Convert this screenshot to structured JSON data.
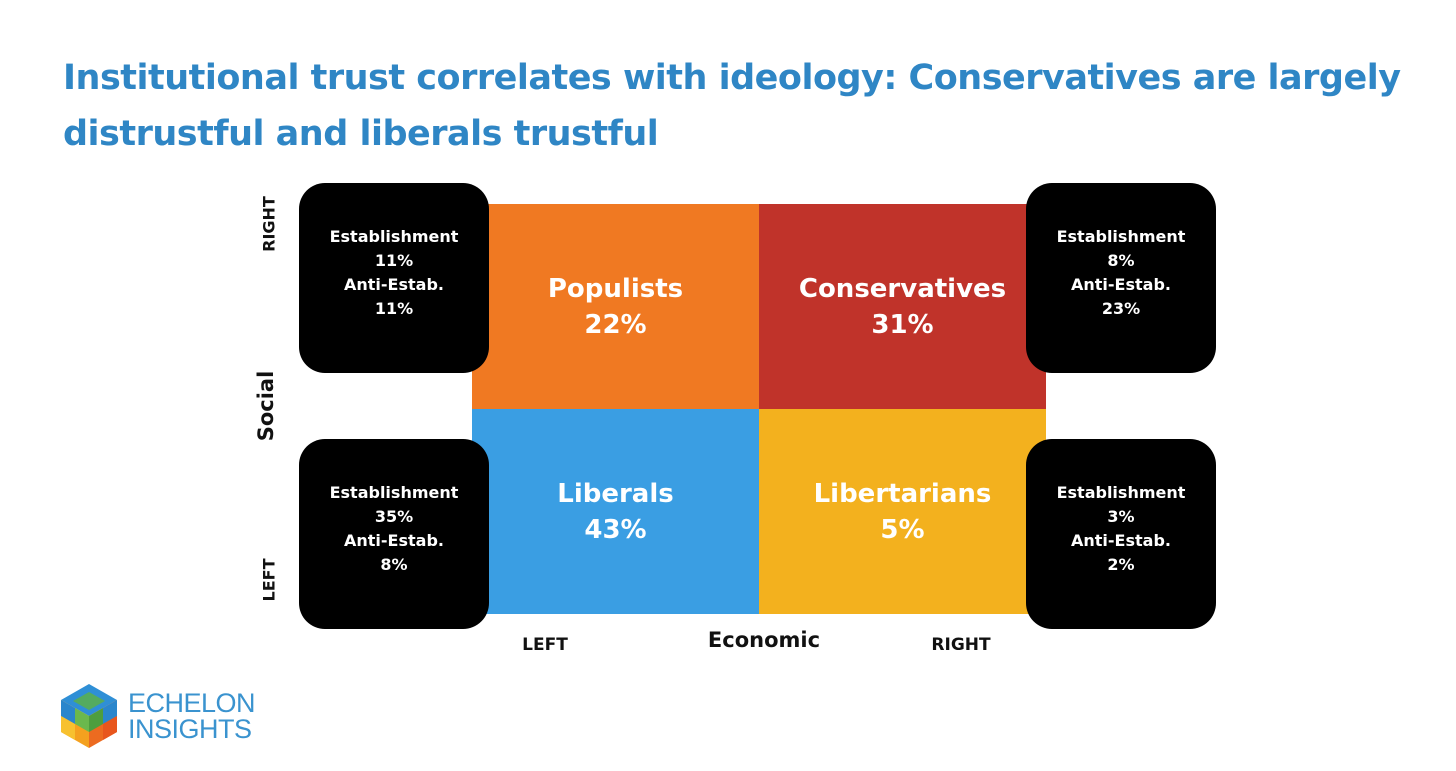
{
  "title": "Institutional trust correlates with ideology: Conservatives are largely distrustful and liberals trustful",
  "quadrants": {
    "populists": {
      "name": "Populists",
      "pct": "22%",
      "color": "#f07922"
    },
    "conservatives": {
      "name": "Conservatives",
      "pct": "31%",
      "color": "#c0332a"
    },
    "liberals": {
      "name": "Liberals",
      "pct": "43%",
      "color": "#3a9ee3"
    },
    "libertarians": {
      "name": "Libertarians",
      "pct": "5%",
      "color": "#f3b11e"
    }
  },
  "boxes": {
    "top_left": {
      "est_label": "Establishment",
      "est_pct": "11%",
      "anti_label": "Anti-Estab.",
      "anti_pct": "11%"
    },
    "top_right": {
      "est_label": "Establishment",
      "est_pct": "8%",
      "anti_label": "Anti-Estab.",
      "anti_pct": "23%"
    },
    "bottom_left": {
      "est_label": "Establishment",
      "est_pct": "35%",
      "anti_label": "Anti-Estab.",
      "anti_pct": "8%"
    },
    "bottom_right": {
      "est_label": "Establishment",
      "est_pct": "3%",
      "anti_label": "Anti-Estab.",
      "anti_pct": "2%"
    }
  },
  "axes": {
    "social": {
      "label": "Social",
      "top": "RIGHT",
      "bottom": "LEFT"
    },
    "economic": {
      "label": "Economic",
      "left": "LEFT",
      "right": "RIGHT"
    }
  },
  "logo": {
    "line1": "ECHELON",
    "line2": "INSIGHTS",
    "icon": "cube-logo-icon"
  }
}
